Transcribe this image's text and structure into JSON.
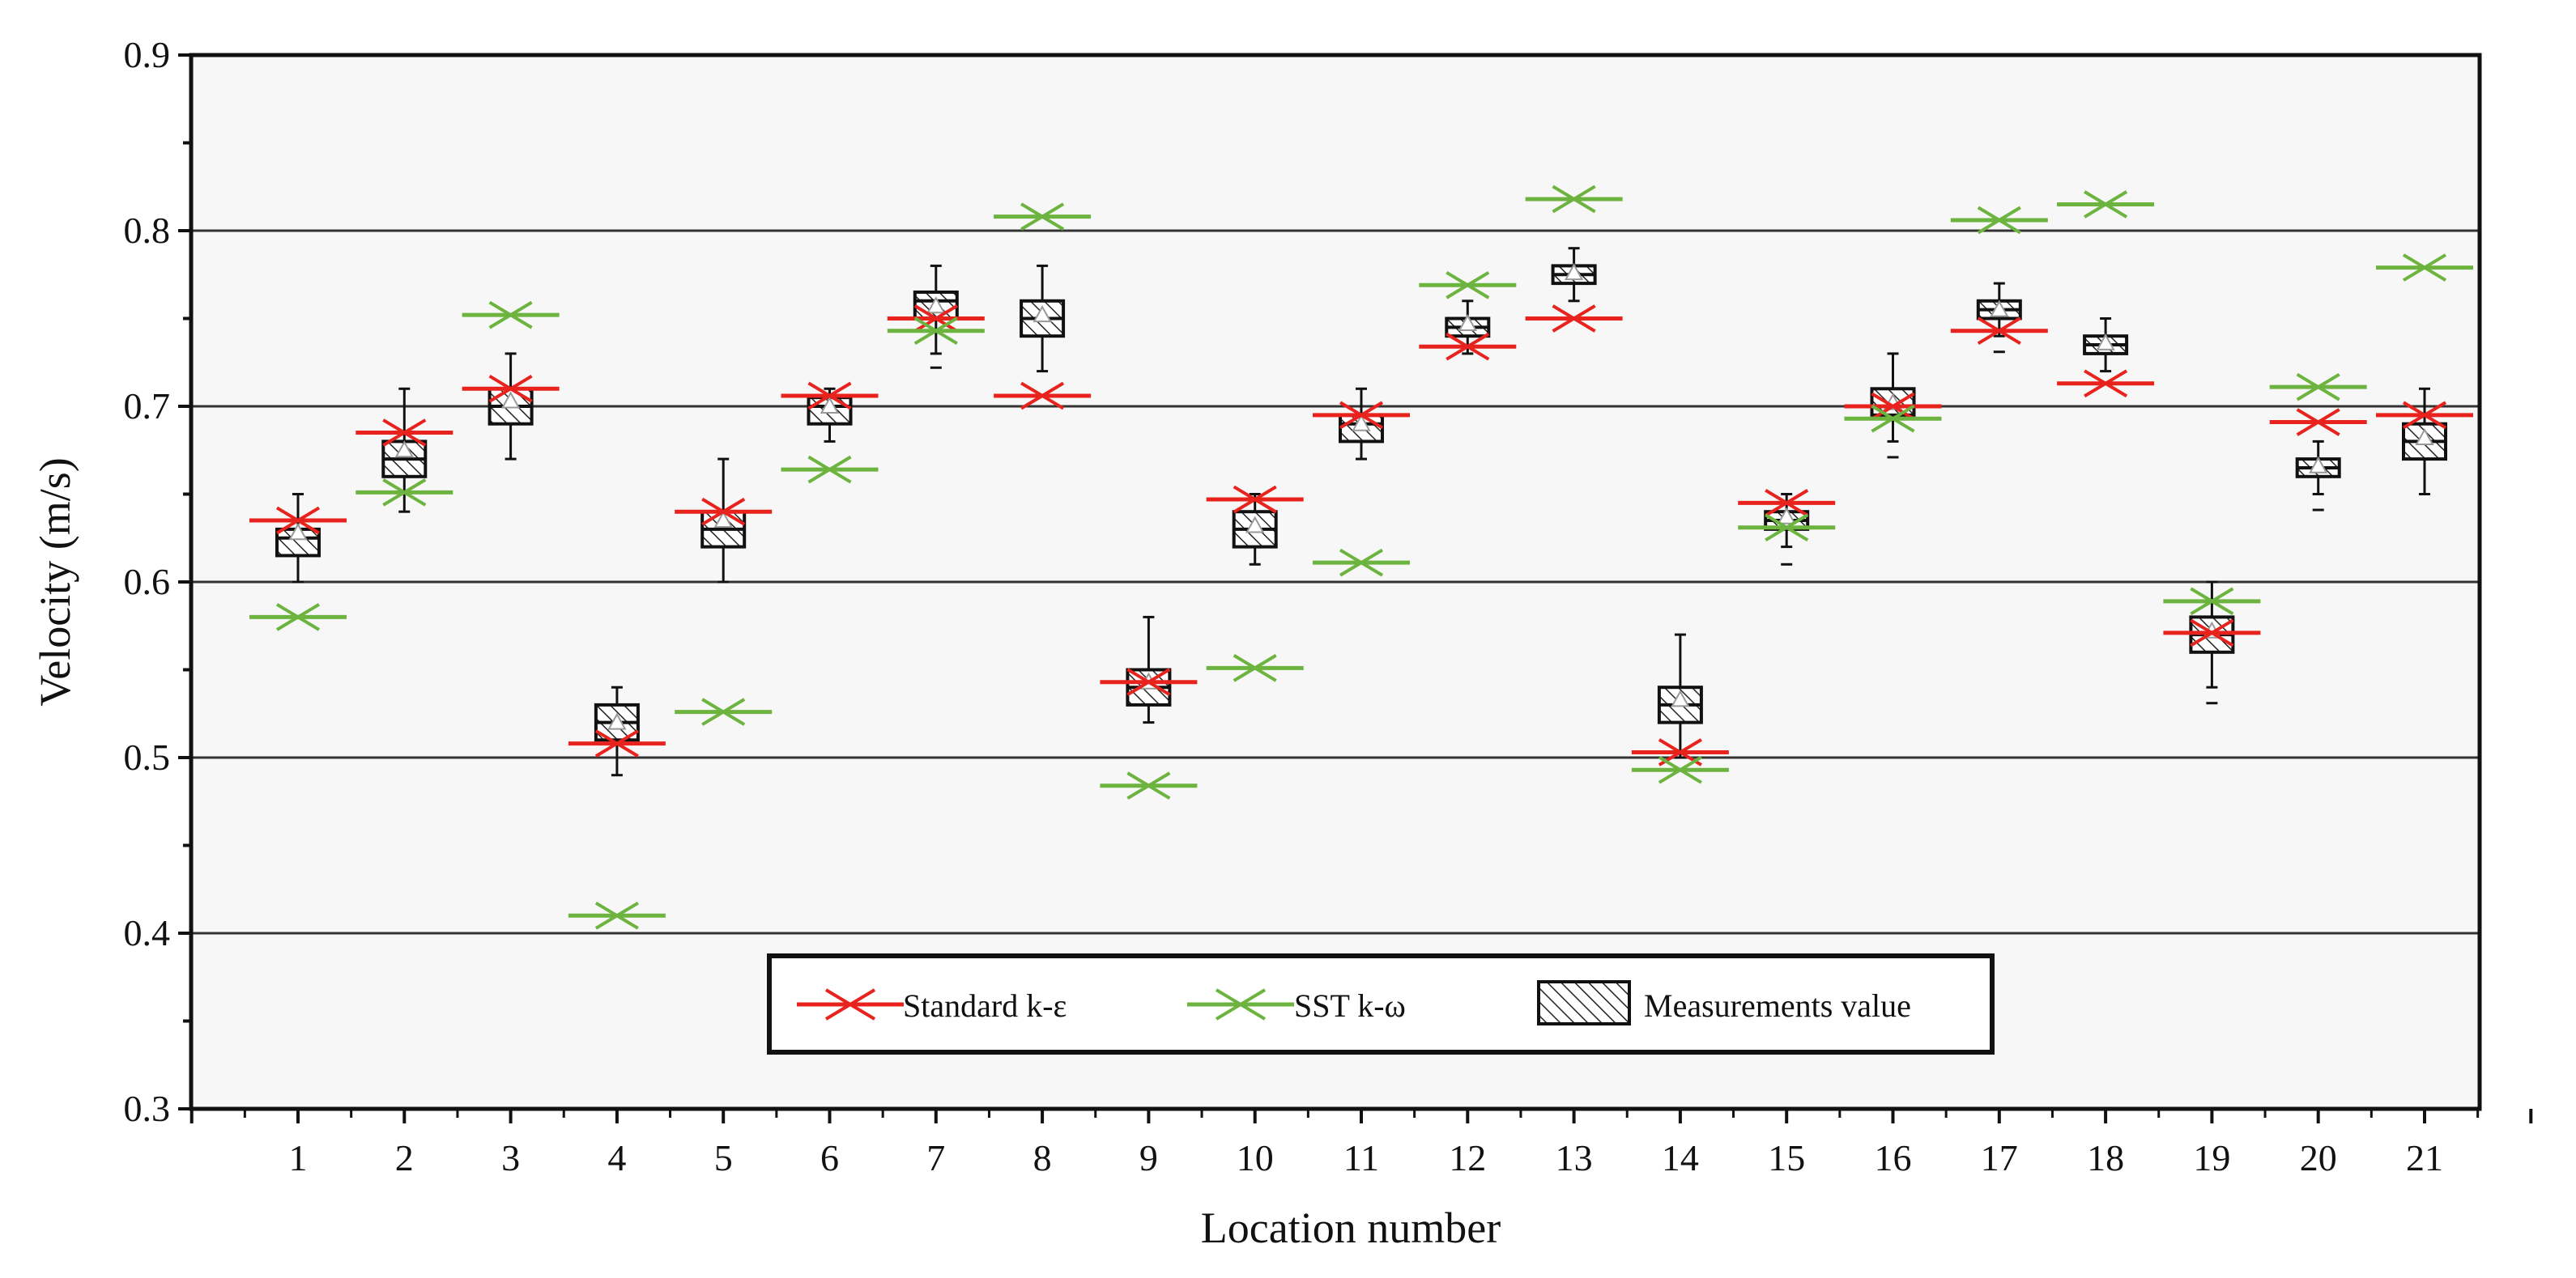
{
  "chart_data": {
    "type": "box",
    "xlabel": "Location number",
    "ylabel": "Velocity (m/s)",
    "ylim": [
      0.3,
      0.9
    ],
    "yticks": [
      "0.3",
      "0.4",
      "0.5",
      "0.6",
      "0.7",
      "0.8",
      "0.9"
    ],
    "grid": "horizontal major lines",
    "categories": [
      "1",
      "2",
      "3",
      "4",
      "5",
      "6",
      "7",
      "8",
      "9",
      "10",
      "11",
      "12",
      "13",
      "14",
      "15",
      "16",
      "17",
      "18",
      "19",
      "20",
      "21"
    ],
    "series": [
      {
        "name": "Standard k-ε",
        "marker": "x-with-bar",
        "color": "#e8231e",
        "values": [
          0.635,
          0.685,
          0.71,
          0.508,
          0.64,
          0.706,
          0.75,
          0.706,
          0.543,
          0.647,
          0.695,
          0.734,
          0.75,
          0.503,
          0.645,
          0.7,
          0.743,
          0.713,
          0.571,
          0.691,
          0.695
        ]
      },
      {
        "name": "SST k-ω",
        "marker": "x-with-bar",
        "color": "#6db33f",
        "values": [
          0.58,
          0.651,
          0.752,
          0.41,
          0.526,
          0.664,
          0.743,
          0.808,
          0.484,
          0.551,
          0.611,
          0.769,
          0.818,
          0.493,
          0.631,
          0.693,
          0.806,
          0.815,
          0.589,
          0.711,
          0.779
        ]
      },
      {
        "name": "Measurements value",
        "marker": "hatched-box",
        "color": "#000000",
        "boxes": [
          {
            "q1": 0.615,
            "median": 0.625,
            "q3": 0.63,
            "whisker_low": 0.6,
            "whisker_high": 0.65,
            "mean": 0.628
          },
          {
            "q1": 0.66,
            "median": 0.67,
            "q3": 0.68,
            "whisker_low": 0.64,
            "whisker_high": 0.71,
            "mean": 0.675
          },
          {
            "q1": 0.69,
            "median": 0.7,
            "q3": 0.71,
            "whisker_low": 0.67,
            "whisker_high": 0.73,
            "mean": 0.703
          },
          {
            "q1": 0.51,
            "median": 0.52,
            "q3": 0.53,
            "whisker_low": 0.49,
            "whisker_high": 0.54,
            "mean": 0.52
          },
          {
            "q1": 0.62,
            "median": 0.63,
            "q3": 0.64,
            "whisker_low": 0.6,
            "whisker_high": 0.67,
            "mean": 0.635
          },
          {
            "q1": 0.69,
            "median": 0.7,
            "q3": 0.705,
            "whisker_low": 0.68,
            "whisker_high": 0.71,
            "mean": 0.7
          },
          {
            "q1": 0.75,
            "median": 0.76,
            "q3": 0.765,
            "whisker_low": 0.73,
            "whisker_high": 0.78,
            "mean": 0.757,
            "outlier": 0.722
          },
          {
            "q1": 0.74,
            "median": 0.75,
            "q3": 0.76,
            "whisker_low": 0.72,
            "whisker_high": 0.78,
            "mean": 0.752
          },
          {
            "q1": 0.53,
            "median": 0.54,
            "q3": 0.55,
            "whisker_low": 0.52,
            "whisker_high": 0.58,
            "mean": 0.543
          },
          {
            "q1": 0.62,
            "median": 0.63,
            "q3": 0.64,
            "whisker_low": 0.61,
            "whisker_high": 0.65,
            "mean": 0.632
          },
          {
            "q1": 0.68,
            "median": 0.69,
            "q3": 0.695,
            "whisker_low": 0.67,
            "whisker_high": 0.71,
            "mean": 0.69
          },
          {
            "q1": 0.74,
            "median": 0.745,
            "q3": 0.75,
            "whisker_low": 0.73,
            "whisker_high": 0.76,
            "mean": 0.747
          },
          {
            "q1": 0.77,
            "median": 0.775,
            "q3": 0.78,
            "whisker_low": 0.76,
            "whisker_high": 0.79,
            "mean": 0.776
          },
          {
            "q1": 0.52,
            "median": 0.53,
            "q3": 0.54,
            "whisker_low": 0.5,
            "whisker_high": 0.57,
            "mean": 0.533
          },
          {
            "q1": 0.63,
            "median": 0.635,
            "q3": 0.64,
            "whisker_low": 0.62,
            "whisker_high": 0.65,
            "mean": 0.637,
            "outlier": 0.61
          },
          {
            "q1": 0.695,
            "median": 0.7,
            "q3": 0.71,
            "whisker_low": 0.68,
            "whisker_high": 0.73,
            "mean": 0.702,
            "outlier": 0.671
          },
          {
            "q1": 0.75,
            "median": 0.755,
            "q3": 0.76,
            "whisker_low": 0.74,
            "whisker_high": 0.77,
            "mean": 0.755,
            "outlier": 0.731
          },
          {
            "q1": 0.73,
            "median": 0.735,
            "q3": 0.74,
            "whisker_low": 0.72,
            "whisker_high": 0.75,
            "mean": 0.736
          },
          {
            "q1": 0.56,
            "median": 0.57,
            "q3": 0.58,
            "whisker_low": 0.54,
            "whisker_high": 0.6,
            "mean": 0.572,
            "outlier": 0.531
          },
          {
            "q1": 0.66,
            "median": 0.665,
            "q3": 0.67,
            "whisker_low": 0.65,
            "whisker_high": 0.68,
            "mean": 0.666,
            "outlier": 0.641
          },
          {
            "q1": 0.67,
            "median": 0.68,
            "q3": 0.69,
            "whisker_low": 0.65,
            "whisker_high": 0.71,
            "mean": 0.682
          }
        ]
      }
    ],
    "legend": {
      "position": "bottom-center-inside",
      "entries": [
        "Standard k-ε",
        "SST k-ω",
        "Measurements value"
      ]
    }
  }
}
